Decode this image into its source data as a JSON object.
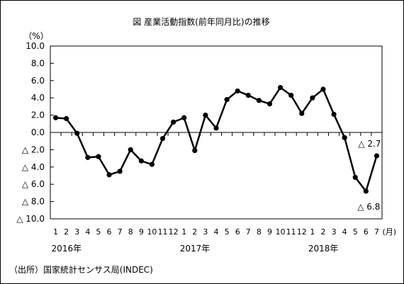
{
  "chart_data": {
    "type": "line",
    "title": "図 産業活動指数(前年同月比)の推移",
    "y_unit_label": "（%）",
    "x_unit_label": "(月)",
    "ylim": [
      -10,
      10
    ],
    "y_ticks": [
      {
        "value": 10,
        "label": "10.0"
      },
      {
        "value": 8,
        "label": "8.0"
      },
      {
        "value": 6,
        "label": "6.0"
      },
      {
        "value": 4,
        "label": "4.0"
      },
      {
        "value": 2,
        "label": "2.0"
      },
      {
        "value": 0,
        "label": "0.0"
      },
      {
        "value": -2,
        "label": "△ 2.0"
      },
      {
        "value": -4,
        "label": "△ 4.0"
      },
      {
        "value": -6,
        "label": "△ 6.0"
      },
      {
        "value": -8,
        "label": "△ 8.0"
      },
      {
        "value": -10,
        "label": "△ 10.0"
      }
    ],
    "x_labels": [
      "1",
      "2",
      "3",
      "4",
      "5",
      "6",
      "7",
      "8",
      "9",
      "10",
      "11",
      "12",
      "1",
      "2",
      "3",
      "4",
      "5",
      "6",
      "7",
      "8",
      "9",
      "10",
      "11",
      "12",
      "1",
      "2",
      "3",
      "4",
      "5",
      "6",
      "7"
    ],
    "year_labels": [
      {
        "index": 0,
        "label": "2016年"
      },
      {
        "index": 12,
        "label": "2017年"
      },
      {
        "index": 24,
        "label": "2018年"
      }
    ],
    "series": [
      {
        "values": [
          1.7,
          1.6,
          -0.1,
          -2.9,
          -2.8,
          -4.9,
          -4.5,
          -2.0,
          -3.3,
          -3.7,
          -0.7,
          1.2,
          1.7,
          -2.1,
          2.0,
          0.5,
          3.8,
          4.8,
          4.3,
          3.7,
          3.3,
          5.2,
          4.3,
          2.2,
          4.0,
          5.0,
          2.1,
          -0.6,
          -5.2,
          -6.8,
          -2.7
        ]
      }
    ],
    "annotations": [
      {
        "index": 30,
        "label": "△ 2.7"
      },
      {
        "index": 29,
        "label": "△ 6.8"
      }
    ],
    "grid": false,
    "legend": "none"
  },
  "source": "（出所）国家統計センサス局(INDEC)"
}
